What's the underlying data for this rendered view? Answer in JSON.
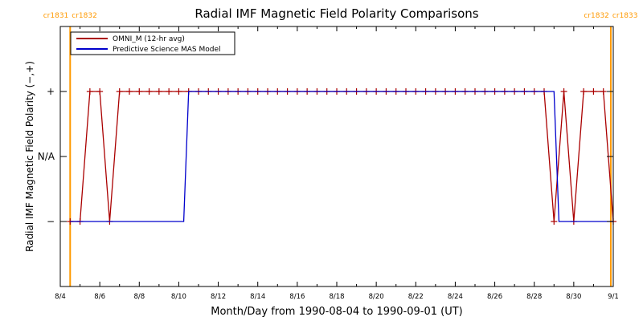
{
  "chart_data": {
    "type": "line",
    "title": "Radial IMF Magnetic Field Polarity Comparisons",
    "xlabel": "Month/Day from 1990-08-04 to 1990-09-01 (UT)",
    "ylabel": "Radial IMF Magnetic Field Polarity (−,+)",
    "x_ticks": [
      "8/4",
      "8/6",
      "8/8",
      "8/10",
      "8/12",
      "8/14",
      "8/16",
      "8/18",
      "8/20",
      "8/22",
      "8/24",
      "8/26",
      "8/28",
      "8/30",
      "9/1"
    ],
    "y_ticks": [
      {
        "value": 1,
        "label": "+"
      },
      {
        "value": 0,
        "label": "N/A"
      },
      {
        "value": -1,
        "label": "−"
      }
    ],
    "xlim": [
      "1990-08-04",
      "1990-09-01"
    ],
    "ylim": [
      -2,
      2
    ],
    "grid": false,
    "legend_position": "top-left",
    "rotation_markers": [
      {
        "date": "1990-08-04 12:00",
        "label_left": "cr1831",
        "label_right": "cr1832",
        "color": "#ff9900"
      },
      {
        "date": "1990-08-31 21:00",
        "label_left": "cr1832",
        "label_right": "cr1833",
        "color": "#ff9900"
      }
    ],
    "series": [
      {
        "name": "OMNI_M (12-hr avg)",
        "color": "#aa0000",
        "marker": "plus",
        "points": [
          [
            "1990-08-04 12:00",
            -1
          ],
          [
            "1990-08-05 00:00",
            -1
          ],
          [
            "1990-08-05 12:00",
            1
          ],
          [
            "1990-08-06 00:00",
            1
          ],
          [
            "1990-08-06 12:00",
            -1
          ],
          [
            "1990-08-07 00:00",
            1
          ],
          [
            "1990-08-07 12:00",
            1
          ],
          [
            "1990-08-08 00:00",
            1
          ],
          [
            "1990-08-08 12:00",
            1
          ],
          [
            "1990-08-09 00:00",
            1
          ],
          [
            "1990-08-09 12:00",
            1
          ],
          [
            "1990-08-10 00:00",
            1
          ],
          [
            "1990-08-10 12:00",
            1
          ],
          [
            "1990-08-11 00:00",
            1
          ],
          [
            "1990-08-11 12:00",
            1
          ],
          [
            "1990-08-12 00:00",
            1
          ],
          [
            "1990-08-12 12:00",
            1
          ],
          [
            "1990-08-13 00:00",
            1
          ],
          [
            "1990-08-13 12:00",
            1
          ],
          [
            "1990-08-14 00:00",
            1
          ],
          [
            "1990-08-14 12:00",
            1
          ],
          [
            "1990-08-15 00:00",
            1
          ],
          [
            "1990-08-15 12:00",
            1
          ],
          [
            "1990-08-16 00:00",
            1
          ],
          [
            "1990-08-16 12:00",
            1
          ],
          [
            "1990-08-17 00:00",
            1
          ],
          [
            "1990-08-17 12:00",
            1
          ],
          [
            "1990-08-18 00:00",
            1
          ],
          [
            "1990-08-18 12:00",
            1
          ],
          [
            "1990-08-19 00:00",
            1
          ],
          [
            "1990-08-19 12:00",
            1
          ],
          [
            "1990-08-20 00:00",
            1
          ],
          [
            "1990-08-20 12:00",
            1
          ],
          [
            "1990-08-21 00:00",
            1
          ],
          [
            "1990-08-21 12:00",
            1
          ],
          [
            "1990-08-22 00:00",
            1
          ],
          [
            "1990-08-22 12:00",
            1
          ],
          [
            "1990-08-23 00:00",
            1
          ],
          [
            "1990-08-23 12:00",
            1
          ],
          [
            "1990-08-24 00:00",
            1
          ],
          [
            "1990-08-24 12:00",
            1
          ],
          [
            "1990-08-25 00:00",
            1
          ],
          [
            "1990-08-25 12:00",
            1
          ],
          [
            "1990-08-26 00:00",
            1
          ],
          [
            "1990-08-26 12:00",
            1
          ],
          [
            "1990-08-27 00:00",
            1
          ],
          [
            "1990-08-27 12:00",
            1
          ],
          [
            "1990-08-28 00:00",
            1
          ],
          [
            "1990-08-28 12:00",
            1
          ],
          [
            "1990-08-29 00:00",
            -1
          ],
          [
            "1990-08-29 12:00",
            1
          ],
          [
            "1990-08-30 00:00",
            -1
          ],
          [
            "1990-08-30 12:00",
            1
          ],
          [
            "1990-08-31 00:00",
            1
          ],
          [
            "1990-08-31 12:00",
            1
          ],
          [
            "1990-09-01 00:00",
            -1
          ]
        ]
      },
      {
        "name": "Predictive Science MAS Model",
        "color": "#0000cc",
        "marker": "none",
        "points": [
          [
            "1990-08-04 12:00",
            -1
          ],
          [
            "1990-08-10 06:00",
            -1
          ],
          [
            "1990-08-10 12:00",
            1
          ],
          [
            "1990-08-29 00:00",
            1
          ],
          [
            "1990-08-29 06:00",
            -1
          ],
          [
            "1990-09-01 00:00",
            -1
          ]
        ]
      }
    ]
  }
}
